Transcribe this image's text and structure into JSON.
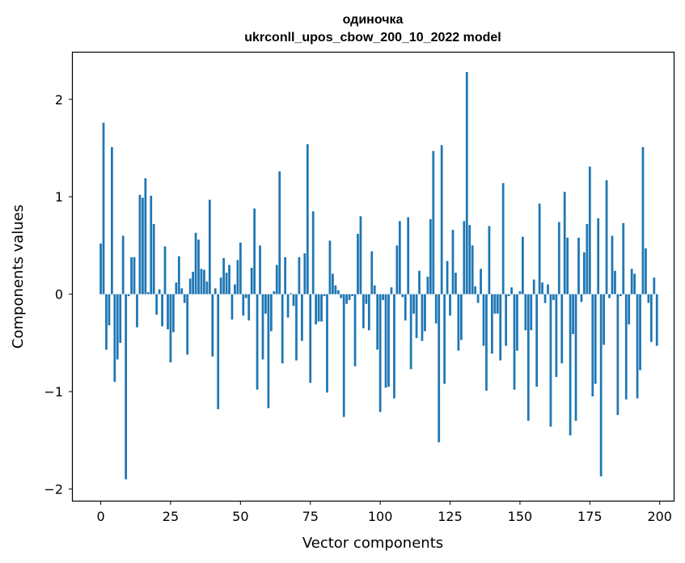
{
  "chart_data": {
    "type": "bar",
    "title": "одиночка",
    "subtitle": "ukrconll_upos_cbow_200_10_2022 model",
    "xlabel": "Vector components",
    "ylabel": "Components values",
    "xlim": [
      -10,
      205
    ],
    "ylim": [
      -2.12,
      2.48
    ],
    "xticks": [
      0,
      25,
      50,
      75,
      100,
      125,
      150,
      175,
      200
    ],
    "xtick_labels": [
      "0",
      "25",
      "50",
      "75",
      "100",
      "125",
      "150",
      "175",
      "200"
    ],
    "yticks": [
      -2,
      -1,
      0,
      1,
      2
    ],
    "ytick_labels": [
      "−2",
      "−1",
      "0",
      "1",
      "2"
    ],
    "grid": false,
    "legend": "none",
    "bar_color": "#1f77b4",
    "x": [
      0,
      1,
      2,
      3,
      4,
      5,
      6,
      7,
      8,
      9,
      10,
      11,
      12,
      13,
      14,
      15,
      16,
      17,
      18,
      19,
      20,
      21,
      22,
      23,
      24,
      25,
      26,
      27,
      28,
      29,
      30,
      31,
      32,
      33,
      34,
      35,
      36,
      37,
      38,
      39,
      40,
      41,
      42,
      43,
      44,
      45,
      46,
      47,
      48,
      49,
      50,
      51,
      52,
      53,
      54,
      55,
      56,
      57,
      58,
      59,
      60,
      61,
      62,
      63,
      64,
      65,
      66,
      67,
      68,
      69,
      70,
      71,
      72,
      73,
      74,
      75,
      76,
      77,
      78,
      79,
      80,
      81,
      82,
      83,
      84,
      85,
      86,
      87,
      88,
      89,
      90,
      91,
      92,
      93,
      94,
      95,
      96,
      97,
      98,
      99,
      100,
      101,
      102,
      103,
      104,
      105,
      106,
      107,
      108,
      109,
      110,
      111,
      112,
      113,
      114,
      115,
      116,
      117,
      118,
      119,
      120,
      121,
      122,
      123,
      124,
      125,
      126,
      127,
      128,
      129,
      130,
      131,
      132,
      133,
      134,
      135,
      136,
      137,
      138,
      139,
      140,
      141,
      142,
      143,
      144,
      145,
      146,
      147,
      148,
      149,
      150,
      151,
      152,
      153,
      154,
      155,
      156,
      157,
      158,
      159,
      160,
      161,
      162,
      163,
      164,
      165,
      166,
      167,
      168,
      169,
      170,
      171,
      172,
      173,
      174,
      175,
      176,
      177,
      178,
      179,
      180,
      181,
      182,
      183,
      184,
      185,
      186,
      187,
      188,
      189,
      190,
      191,
      192,
      193,
      194,
      195,
      196,
      197,
      198,
      199
    ],
    "values": [
      0.52,
      1.76,
      -0.57,
      -0.32,
      1.51,
      -0.9,
      -0.67,
      -0.5,
      0.6,
      -1.9,
      -0.02,
      0.38,
      0.38,
      -0.34,
      1.02,
      0.99,
      1.19,
      0.02,
      1.01,
      0.72,
      -0.21,
      0.05,
      -0.33,
      0.49,
      -0.36,
      -0.7,
      -0.39,
      0.12,
      0.39,
      0.06,
      -0.09,
      -0.62,
      0.16,
      0.23,
      0.63,
      0.56,
      0.26,
      0.25,
      0.13,
      0.97,
      -0.64,
      0.06,
      -1.18,
      0.17,
      0.37,
      0.22,
      0.3,
      -0.26,
      0.1,
      0.35,
      0.53,
      -0.22,
      -0.04,
      -0.27,
      0.27,
      0.88,
      -0.98,
      0.5,
      -0.67,
      -0.2,
      -1.17,
      -0.38,
      0.03,
      0.3,
      1.26,
      -0.71,
      0.38,
      -0.24,
      0.01,
      -0.12,
      -0.68,
      0.38,
      -0.48,
      0.42,
      1.54,
      -0.91,
      0.85,
      -0.31,
      -0.28,
      -0.28,
      -0.02,
      -1.01,
      0.55,
      0.21,
      0.09,
      0.04,
      -0.04,
      -1.26,
      -0.1,
      -0.06,
      -0.02,
      -0.74,
      0.62,
      0.8,
      -0.35,
      -0.1,
      -0.37,
      0.44,
      0.09,
      -0.57,
      -1.21,
      -0.06,
      -0.96,
      -0.95,
      0.07,
      -1.07,
      0.5,
      0.75,
      -0.03,
      -0.27,
      0.79,
      -0.77,
      -0.2,
      -0.45,
      0.24,
      -0.48,
      -0.38,
      0.18,
      0.77,
      1.47,
      -0.3,
      -1.52,
      1.53,
      -0.92,
      0.34,
      -0.22,
      0.66,
      0.22,
      -0.58,
      -0.47,
      0.75,
      2.28,
      0.71,
      0.5,
      0.08,
      -0.09,
      0.26,
      -0.53,
      -0.99,
      0.7,
      -0.61,
      -0.2,
      -0.2,
      -0.68,
      1.14,
      -0.53,
      -0.02,
      0.07,
      -0.98,
      -0.58,
      0.03,
      0.59,
      -0.37,
      -1.3,
      -0.37,
      0.15,
      -0.95,
      0.93,
      0.12,
      -0.09,
      0.1,
      -1.36,
      -0.06,
      -0.85,
      0.74,
      -0.71,
      1.05,
      0.58,
      -1.45,
      -0.41,
      -1.3,
      0.58,
      -0.08,
      0.43,
      0.72,
      1.31,
      -1.05,
      -0.92,
      0.78,
      -1.87,
      -0.52,
      1.17,
      -0.04,
      0.6,
      0.24,
      -1.24,
      -0.02,
      0.73,
      -1.08,
      -0.31,
      0.26,
      0.21,
      -1.07,
      -0.78,
      1.51,
      0.47,
      -0.09,
      -0.49,
      0.17,
      -0.53
    ]
  }
}
